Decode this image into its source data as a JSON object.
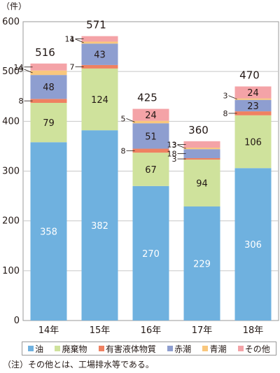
{
  "chart_data": {
    "type": "bar",
    "stacked": true,
    "unit_label": "（件）",
    "categories": [
      "14年",
      "15年",
      "16年",
      "17年",
      "18年"
    ],
    "totals": [
      516,
      571,
      425,
      360,
      470
    ],
    "ylim": [
      0,
      600
    ],
    "yticks": [
      0,
      100,
      200,
      300,
      400,
      500,
      600
    ],
    "grid": true,
    "legend_position": "bottom",
    "series": [
      {
        "name": "油",
        "color": "#6fb1df",
        "values": [
          358,
          382,
          270,
          229,
          306
        ]
      },
      {
        "name": "廃棄物",
        "color": "#cfe29c",
        "values": [
          79,
          124,
          67,
          94,
          106
        ]
      },
      {
        "name": "有害液体物質",
        "color": "#ef8161",
        "values": [
          8,
          7,
          8,
          3,
          8
        ]
      },
      {
        "name": "赤潮",
        "color": "#8e9ed0",
        "values": [
          48,
          43,
          51,
          18,
          23
        ]
      },
      {
        "name": "青潮",
        "color": "#f9c77d",
        "values": [
          9,
          4,
          5,
          3,
          3
        ]
      },
      {
        "name": "その他",
        "color": "#f4a3a7",
        "values": [
          14,
          11,
          24,
          13,
          24
        ]
      }
    ]
  },
  "note": "（注）その他とは、工場排水等である。"
}
